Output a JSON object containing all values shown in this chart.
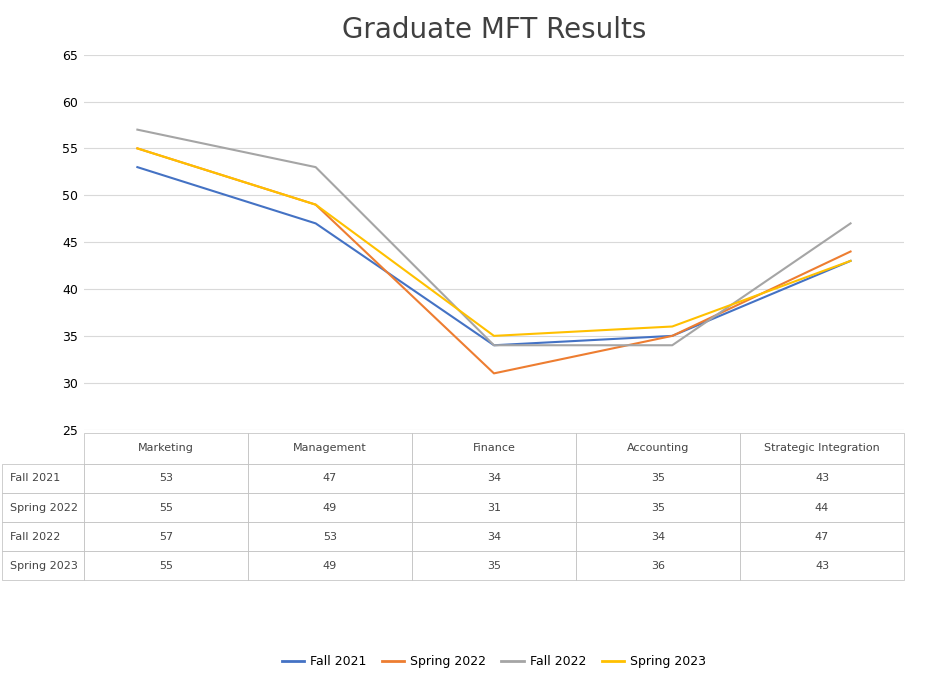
{
  "title": "Graduate MFT Results",
  "categories": [
    "Marketing",
    "Management",
    "Finance",
    "Accounting",
    "Strategic Integration"
  ],
  "series": [
    {
      "label": "Fall 2021",
      "color": "#4472C4",
      "values": [
        53,
        47,
        34,
        35,
        43
      ]
    },
    {
      "label": "Spring 2022",
      "color": "#ED7D31",
      "values": [
        55,
        49,
        31,
        35,
        44
      ]
    },
    {
      "label": "Fall 2022",
      "color": "#A5A5A5",
      "values": [
        57,
        53,
        34,
        34,
        47
      ]
    },
    {
      "label": "Spring 2023",
      "color": "#FFC000",
      "values": [
        55,
        49,
        35,
        36,
        43
      ]
    }
  ],
  "ylim": [
    25,
    65
  ],
  "yticks": [
    25,
    30,
    35,
    40,
    45,
    50,
    55,
    60,
    65
  ],
  "background_color": "#FFFFFF",
  "title_fontsize": 20,
  "table_fontsize": 8,
  "legend_fontsize": 9,
  "line_width": 1.5
}
